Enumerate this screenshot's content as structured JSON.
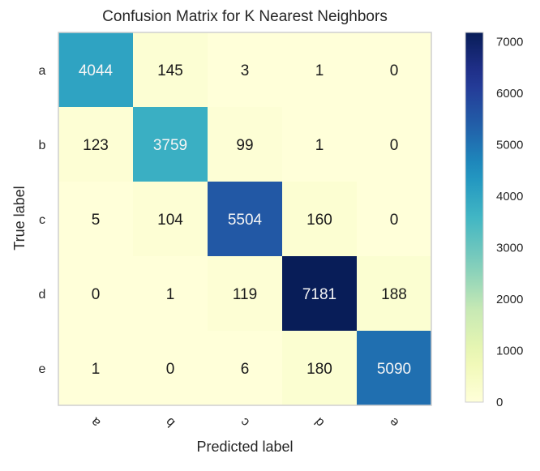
{
  "chart_data": {
    "type": "heatmap",
    "title": "Confusion Matrix for K Nearest Neighbors",
    "xlabel": "Predicted label",
    "ylabel": "True label",
    "x_categories": [
      "a",
      "b",
      "c",
      "d",
      "e"
    ],
    "y_categories": [
      "a",
      "b",
      "c",
      "d",
      "e"
    ],
    "matrix": [
      [
        4044,
        145,
        3,
        1,
        0
      ],
      [
        123,
        3759,
        99,
        1,
        0
      ],
      [
        5,
        104,
        5504,
        160,
        0
      ],
      [
        0,
        1,
        119,
        7181,
        188
      ],
      [
        1,
        0,
        6,
        180,
        5090
      ]
    ],
    "colorbar": {
      "min": 0,
      "max": 7181,
      "ticks": [
        0,
        1000,
        2000,
        3000,
        4000,
        5000,
        6000,
        7000
      ],
      "colormap": "YlGnBu"
    }
  }
}
